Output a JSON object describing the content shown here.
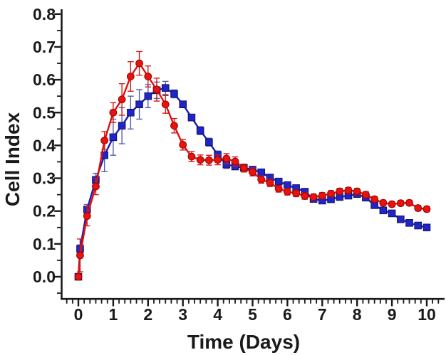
{
  "figure": {
    "background": "#ffffff",
    "text_color": "#1a1a1a"
  },
  "chart_data": {
    "type": "line",
    "title": "",
    "xlabel": "Time (Days)",
    "ylabel": "Cell Index",
    "xlim": [
      -0.48,
      10.5
    ],
    "ylim": [
      -0.066,
      0.8
    ],
    "grid": false,
    "legend_position": "none",
    "x_ticks": [
      0,
      1,
      2,
      3,
      4,
      5,
      6,
      7,
      8,
      9,
      10
    ],
    "x_tick_labels": [
      "0",
      "1",
      "2",
      "3",
      "4",
      "5",
      "6",
      "7",
      "8",
      "9",
      "10"
    ],
    "y_ticks": [
      0.0,
      0.1,
      0.2,
      0.3,
      0.4,
      0.5,
      0.6,
      0.7,
      0.8
    ],
    "y_tick_labels": [
      "0.0",
      "0.1",
      "0.2",
      "0.3",
      "0.4",
      "0.5",
      "0.6",
      "0.7",
      "0.8"
    ],
    "x_minor_divisions_per_major": 6,
    "y_minor_divisions_per_major": 2,
    "x": [
      0,
      0.05,
      0.25,
      0.5,
      0.75,
      1,
      1.25,
      1.5,
      1.75,
      2,
      2.25,
      2.5,
      2.75,
      3,
      3.25,
      3.5,
      3.75,
      4,
      4.25,
      4.5,
      4.75,
      5,
      5.25,
      5.5,
      5.75,
      6,
      6.25,
      6.5,
      6.75,
      7,
      7.25,
      7.5,
      7.75,
      8,
      8.25,
      8.5,
      8.75,
      9,
      9.25,
      9.5,
      9.75,
      10
    ],
    "series": [
      {
        "name": "blue-squares-series",
        "marker": "square",
        "line_color": "#1b1db6",
        "marker_fill": "#2125c8",
        "marker_edge": "#101365",
        "error_color": "#5560a8",
        "values": [
          0.0,
          0.085,
          0.205,
          0.295,
          0.37,
          0.425,
          0.46,
          0.5,
          0.525,
          0.55,
          0.568,
          0.575,
          0.557,
          0.525,
          0.485,
          0.445,
          0.41,
          0.371,
          0.342,
          0.336,
          0.332,
          0.326,
          0.318,
          0.302,
          0.29,
          0.279,
          0.27,
          0.259,
          0.237,
          0.232,
          0.236,
          0.243,
          0.247,
          0.252,
          0.241,
          0.218,
          0.202,
          0.193,
          0.175,
          0.164,
          0.156,
          0.15
        ],
        "errors": [
          0.004,
          0.012,
          0.015,
          0.02,
          0.05,
          0.055,
          0.055,
          0.05,
          0.045,
          0.035,
          0.025,
          0.02,
          0.012,
          0.01,
          0.01,
          0.012,
          0.012,
          0.012,
          0.012,
          0.01,
          0.01,
          0.01,
          0.01,
          0.01,
          0.008,
          0.008,
          0.008,
          0.008,
          0.008,
          0.008,
          0.008,
          0.008,
          0.008,
          0.008,
          0.008,
          0.008,
          0.008,
          0.008,
          0.008,
          0.008,
          0.008,
          0.008
        ]
      },
      {
        "name": "red-circles-series",
        "marker": "circle",
        "line_color": "#dd100d",
        "marker_fill": "#e8120e",
        "marker_edge": "#9a0400",
        "error_color": "#d31a17",
        "values": [
          0.0,
          0.065,
          0.185,
          0.275,
          0.415,
          0.5,
          0.54,
          0.61,
          0.65,
          0.61,
          0.57,
          0.525,
          0.46,
          0.402,
          0.366,
          0.356,
          0.355,
          0.356,
          0.36,
          0.351,
          0.331,
          0.319,
          0.296,
          0.286,
          0.268,
          0.259,
          0.254,
          0.246,
          0.243,
          0.247,
          0.253,
          0.26,
          0.263,
          0.26,
          0.25,
          0.236,
          0.225,
          0.221,
          0.224,
          0.225,
          0.209,
          0.206
        ],
        "errors": [
          0.004,
          0.05,
          0.03,
          0.025,
          0.027,
          0.03,
          0.048,
          0.045,
          0.036,
          0.032,
          0.035,
          0.027,
          0.022,
          0.016,
          0.015,
          0.015,
          0.015,
          0.015,
          0.015,
          0.014,
          0.012,
          0.012,
          0.011,
          0.011,
          0.01,
          0.01,
          0.01,
          0.01,
          0.009,
          0.009,
          0.009,
          0.009,
          0.009,
          0.009,
          0.009,
          0.008,
          0.008,
          0.008,
          0.008,
          0.008,
          0.008,
          0.008
        ]
      }
    ]
  }
}
